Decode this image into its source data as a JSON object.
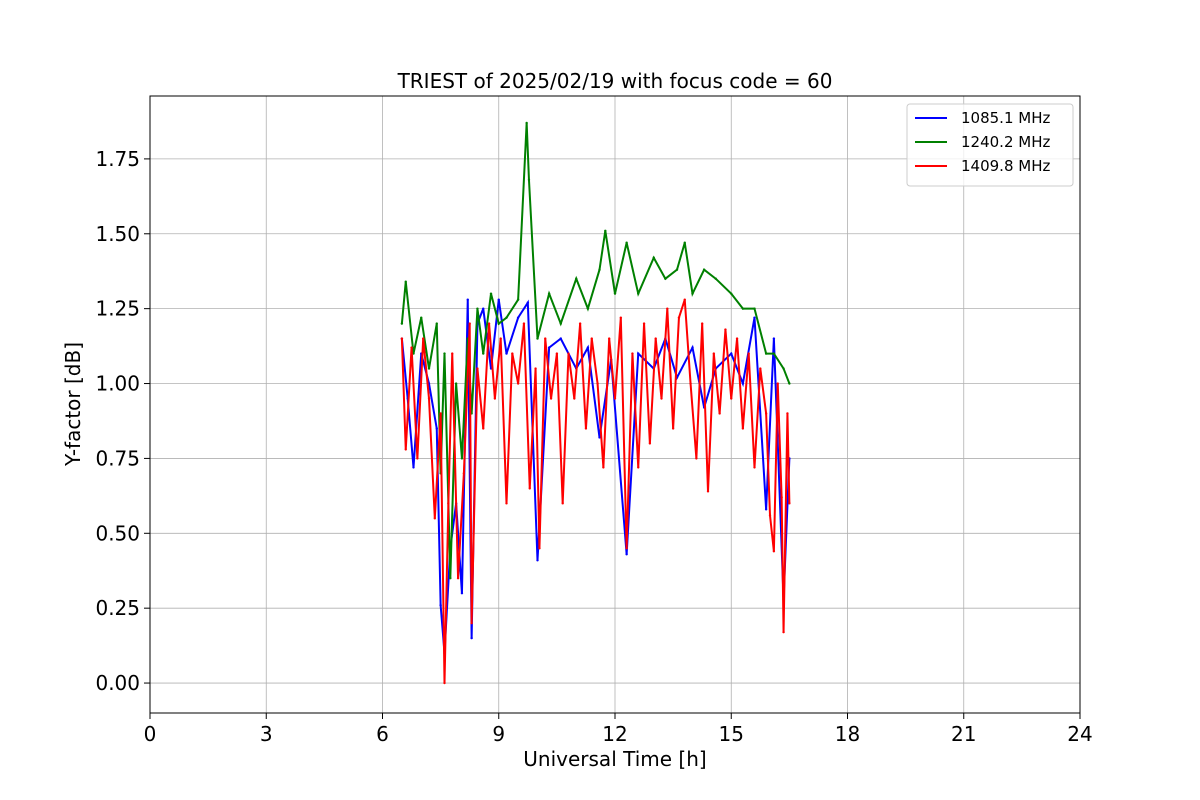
{
  "chart_data": {
    "type": "line",
    "title": "TRIEST of 2025/02/19 with focus code = 60",
    "xlabel": "Universal Time [h]",
    "ylabel": "Y-factor [dB]",
    "xlim": [
      0,
      24
    ],
    "ylim": [
      -0.1,
      1.96
    ],
    "xticks": [
      0,
      3,
      6,
      9,
      12,
      15,
      18,
      21,
      24
    ],
    "xtick_labels": [
      "0",
      "3",
      "6",
      "9",
      "12",
      "15",
      "18",
      "21",
      "24"
    ],
    "yticks": [
      0.0,
      0.25,
      0.5,
      0.75,
      1.0,
      1.25,
      1.5,
      1.75
    ],
    "ytick_labels": [
      "0.00",
      "0.25",
      "0.50",
      "0.75",
      "1.00",
      "1.25",
      "1.50",
      "1.75"
    ],
    "grid": true,
    "legend_position": "top-right",
    "series": [
      {
        "name": "1085.1 MHz",
        "color": "#0000ff",
        "x": [
          6.5,
          6.65,
          6.8,
          7.0,
          7.2,
          7.4,
          7.5,
          7.6,
          7.75,
          7.9,
          8.05,
          8.2,
          8.3,
          8.45,
          8.6,
          8.8,
          9.0,
          9.2,
          9.5,
          9.75,
          10.0,
          10.3,
          10.6,
          11.0,
          11.3,
          11.6,
          11.9,
          12.3,
          12.6,
          13.0,
          13.3,
          13.6,
          14.0,
          14.3,
          14.6,
          15.0,
          15.3,
          15.6,
          15.9,
          16.1,
          16.35,
          16.5
        ],
        "y": [
          1.15,
          0.95,
          0.72,
          1.1,
          1.0,
          0.85,
          0.26,
          0.1,
          0.45,
          0.6,
          0.3,
          1.28,
          0.15,
          1.2,
          1.25,
          1.05,
          1.28,
          1.1,
          1.22,
          1.27,
          0.41,
          1.12,
          1.15,
          1.05,
          1.12,
          0.82,
          1.08,
          0.43,
          1.1,
          1.05,
          1.15,
          1.02,
          1.12,
          0.92,
          1.05,
          1.1,
          1.0,
          1.22,
          0.58,
          1.15,
          0.28,
          0.75
        ]
      },
      {
        "name": "1240.2 MHz",
        "color": "#008000",
        "x": [
          6.5,
          6.6,
          6.8,
          7.0,
          7.2,
          7.4,
          7.5,
          7.6,
          7.75,
          7.9,
          8.05,
          8.2,
          8.3,
          8.45,
          8.6,
          8.8,
          9.0,
          9.2,
          9.5,
          9.72,
          9.78,
          10.0,
          10.3,
          10.6,
          11.0,
          11.3,
          11.6,
          11.75,
          12.0,
          12.3,
          12.6,
          13.0,
          13.3,
          13.6,
          13.8,
          14.0,
          14.3,
          14.6,
          15.0,
          15.3,
          15.6,
          15.9,
          16.1,
          16.35,
          16.5
        ],
        "y": [
          1.2,
          1.34,
          1.1,
          1.22,
          1.05,
          1.2,
          0.7,
          1.1,
          0.35,
          1.0,
          0.75,
          1.15,
          0.9,
          1.25,
          1.1,
          1.3,
          1.2,
          1.22,
          1.28,
          1.87,
          1.68,
          1.15,
          1.3,
          1.2,
          1.35,
          1.25,
          1.38,
          1.51,
          1.3,
          1.47,
          1.3,
          1.42,
          1.35,
          1.38,
          1.47,
          1.3,
          1.38,
          1.35,
          1.3,
          1.25,
          1.25,
          1.1,
          1.1,
          1.05,
          1.0
        ]
      },
      {
        "name": "1409.8 MHz",
        "color": "#ff0000",
        "x": [
          6.5,
          6.6,
          6.75,
          6.9,
          7.05,
          7.2,
          7.35,
          7.5,
          7.6,
          7.7,
          7.8,
          7.95,
          8.1,
          8.25,
          8.3,
          8.45,
          8.6,
          8.75,
          8.9,
          9.05,
          9.2,
          9.35,
          9.5,
          9.65,
          9.8,
          9.95,
          10.05,
          10.2,
          10.35,
          10.5,
          10.65,
          10.8,
          10.95,
          11.1,
          11.25,
          11.4,
          11.55,
          11.7,
          11.85,
          12.0,
          12.15,
          12.3,
          12.45,
          12.6,
          12.75,
          12.9,
          13.05,
          13.2,
          13.35,
          13.5,
          13.65,
          13.8,
          13.95,
          14.1,
          14.25,
          14.4,
          14.55,
          14.7,
          14.85,
          15.0,
          15.15,
          15.3,
          15.45,
          15.6,
          15.75,
          15.9,
          16.0,
          16.1,
          16.2,
          16.3,
          16.35,
          16.45,
          16.5
        ],
        "y": [
          1.15,
          0.78,
          1.12,
          0.75,
          1.15,
          0.95,
          0.55,
          0.9,
          0.0,
          0.6,
          1.1,
          0.35,
          0.7,
          1.2,
          0.2,
          1.05,
          0.85,
          1.2,
          0.95,
          1.15,
          0.6,
          1.1,
          1.0,
          1.2,
          0.65,
          1.05,
          0.45,
          1.15,
          0.95,
          1.1,
          0.6,
          1.1,
          0.95,
          1.2,
          0.85,
          1.15,
          1.0,
          0.72,
          1.15,
          0.95,
          1.22,
          0.45,
          1.1,
          0.72,
          1.2,
          0.8,
          1.15,
          0.95,
          1.25,
          0.85,
          1.22,
          1.28,
          1.0,
          0.75,
          1.2,
          0.64,
          1.1,
          0.9,
          1.18,
          0.95,
          1.15,
          0.85,
          1.1,
          0.72,
          1.05,
          0.9,
          0.56,
          0.44,
          1.0,
          0.62,
          0.17,
          0.9,
          0.6
        ]
      }
    ]
  }
}
